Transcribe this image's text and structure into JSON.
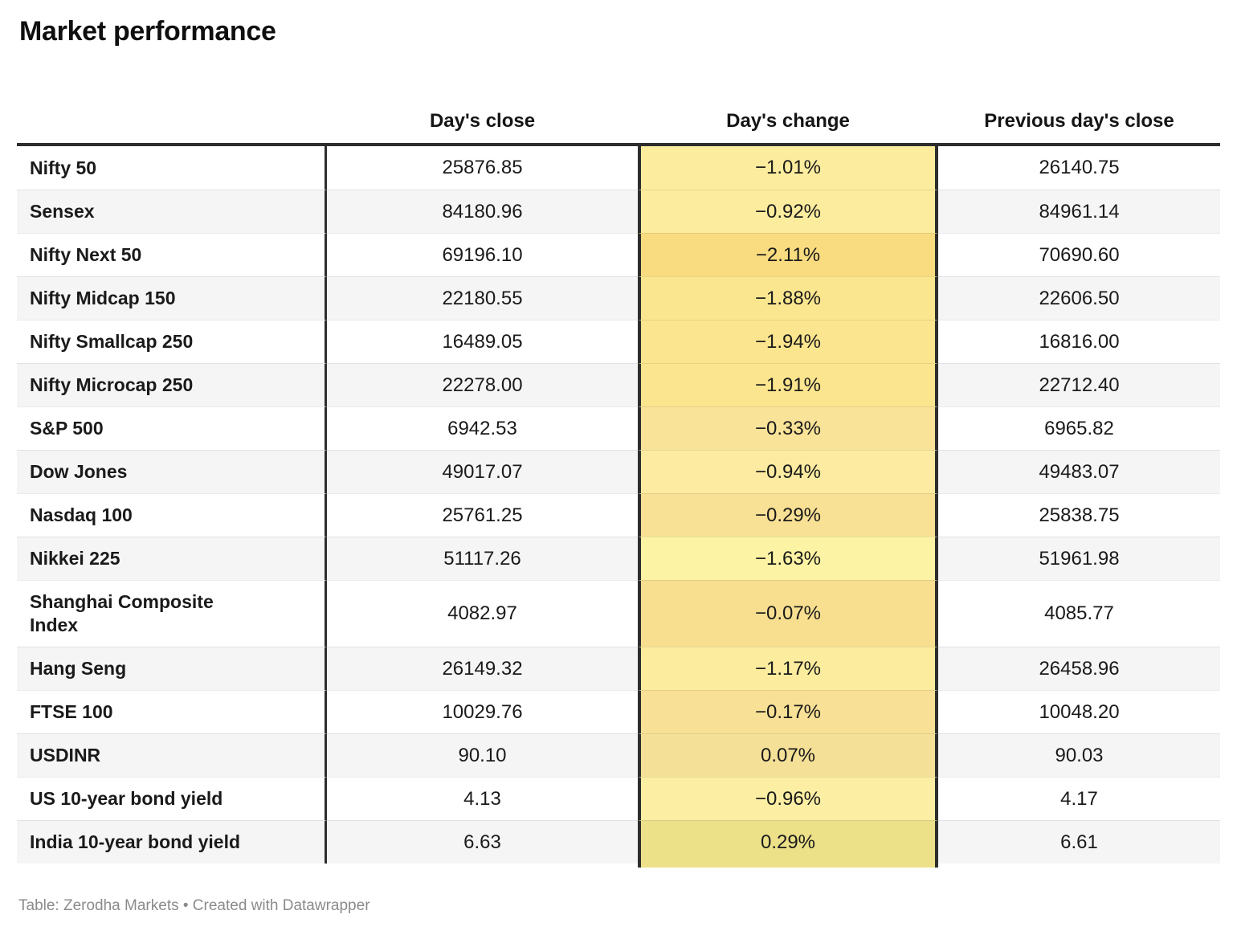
{
  "title": "Market performance",
  "columns": [
    "",
    "Day's close",
    "Day's change",
    "Previous day's close"
  ],
  "rows": [
    {
      "label": "Nifty 50",
      "close": "25876.85",
      "change": "−1.01%",
      "prev": "26140.75",
      "change_color": "#fcec9e"
    },
    {
      "label": "Sensex",
      "close": "84180.96",
      "change": "−0.92%",
      "prev": "84961.14",
      "change_color": "#fcec9e"
    },
    {
      "label": "Nifty Next 50",
      "close": "69196.10",
      "change": "−2.11%",
      "prev": "70690.60",
      "change_color": "#f9dc80"
    },
    {
      "label": "Nifty Midcap 150",
      "close": "22180.55",
      "change": "−1.88%",
      "prev": "22606.50",
      "change_color": "#fbe690"
    },
    {
      "label": "Nifty Smallcap 250",
      "close": "16489.05",
      "change": "−1.94%",
      "prev": "16816.00",
      "change_color": "#fbe58e"
    },
    {
      "label": "Nifty Microcap 250",
      "close": "22278.00",
      "change": "−1.91%",
      "prev": "22712.40",
      "change_color": "#fbe58e"
    },
    {
      "label": "S&P 500",
      "close": "6942.53",
      "change": "−0.33%",
      "prev": "6965.82",
      "change_color": "#f9e399"
    },
    {
      "label": "Dow Jones",
      "close": "49017.07",
      "change": "−0.94%",
      "prev": "49483.07",
      "change_color": "#fceba0"
    },
    {
      "label": "Nasdaq 100",
      "close": "25761.25",
      "change": "−0.29%",
      "prev": "25838.75",
      "change_color": "#f8e094"
    },
    {
      "label": "Nikkei 225",
      "close": "51117.26",
      "change": "−1.63%",
      "prev": "51961.98",
      "change_color": "#fcf3a4"
    },
    {
      "label": "Shanghai Composite Index",
      "close": "4082.97",
      "change": "−0.07%",
      "prev": "4085.77",
      "change_color": "#f8df90"
    },
    {
      "label": "Hang Seng",
      "close": "26149.32",
      "change": "−1.17%",
      "prev": "26458.96",
      "change_color": "#fcec9e"
    },
    {
      "label": "FTSE 100",
      "close": "10029.76",
      "change": "−0.17%",
      "prev": "10048.20",
      "change_color": "#f8e196"
    },
    {
      "label": "USDINR",
      "close": "90.10",
      "change": "0.07%",
      "prev": "90.03",
      "change_color": "#f5e098"
    },
    {
      "label": "US 10-year bond yield",
      "close": "4.13",
      "change": "−0.96%",
      "prev": "4.17",
      "change_color": "#fcefa4"
    },
    {
      "label": "India 10-year bond yield",
      "close": "6.63",
      "change": "0.29%",
      "prev": "6.61",
      "change_color": "#ece089"
    }
  ],
  "footer": "Table: Zerodha Markets • Created with Datawrapper",
  "colors": {
    "table_border_dark": "#2d2d2d",
    "alt_row_background": "#f5f5f5",
    "footer_text": "#8b8b8b"
  },
  "chart_data": {
    "type": "table",
    "title": "Market performance",
    "columns": [
      "",
      "Day's close",
      "Day's change",
      "Previous day's close"
    ],
    "rows": [
      [
        "Nifty 50",
        25876.85,
        "−1.01%",
        26140.75
      ],
      [
        "Sensex",
        84180.96,
        "−0.92%",
        84961.14
      ],
      [
        "Nifty Next 50",
        69196.1,
        "−2.11%",
        70690.6
      ],
      [
        "Nifty Midcap 150",
        22180.55,
        "−1.88%",
        22606.5
      ],
      [
        "Nifty Smallcap 250",
        16489.05,
        "−1.94%",
        16816.0
      ],
      [
        "Nifty Microcap 250",
        22278.0,
        "−1.91%",
        22712.4
      ],
      [
        "S&P 500",
        6942.53,
        "−0.33%",
        6965.82
      ],
      [
        "Dow Jones",
        49017.07,
        "−0.94%",
        49483.07
      ],
      [
        "Nasdaq 100",
        25761.25,
        "−0.29%",
        25838.75
      ],
      [
        "Nikkei 225",
        51117.26,
        "−1.63%",
        51961.98
      ],
      [
        "Shanghai Composite Index",
        4082.97,
        "−0.07%",
        4085.77
      ],
      [
        "Hang Seng",
        26149.32,
        "−1.17%",
        26458.96
      ],
      [
        "FTSE 100",
        10029.76,
        "−0.17%",
        10048.2
      ],
      [
        "USDINR",
        90.1,
        "0.07%",
        90.03
      ],
      [
        "US 10-year bond yield",
        4.13,
        "−0.96%",
        4.17
      ],
      [
        "India 10-year bond yield",
        6.63,
        "0.29%",
        6.61
      ]
    ],
    "notes": "Day's change column cells are shaded yellow; darker amber for larger moves",
    "source_line": "Table: Zerodha Markets • Created with Datawrapper"
  }
}
